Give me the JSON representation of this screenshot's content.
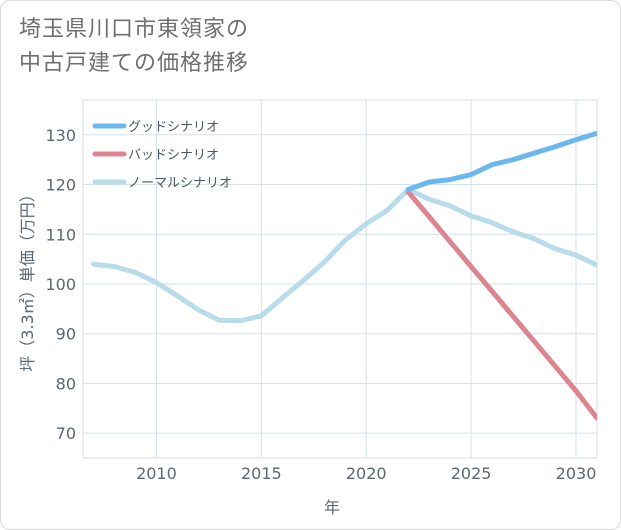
{
  "title_lines": [
    "埼玉県川口市東領家の",
    "中古戸建ての価格推移"
  ],
  "chart_data": {
    "type": "line",
    "xlabel": "年",
    "ylabel": "坪（3.3㎡）単価（万円）",
    "xlim": [
      2006.5,
      2031
    ],
    "ylim": [
      65,
      137
    ],
    "x_ticks": [
      2010,
      2015,
      2020,
      2025,
      2030
    ],
    "y_ticks": [
      70,
      80,
      90,
      100,
      110,
      120,
      130
    ],
    "grid": true,
    "legend_position": "top-left",
    "series": [
      {
        "name": "グッドシナリオ",
        "color": "#6cb8ec",
        "points": [
          [
            2022,
            119
          ],
          [
            2023,
            120.5
          ],
          [
            2024,
            121
          ],
          [
            2025,
            122
          ],
          [
            2026,
            124
          ],
          [
            2027,
            125
          ],
          [
            2028,
            126.3
          ],
          [
            2029,
            127.6
          ],
          [
            2030,
            129
          ],
          [
            2031,
            130.3
          ]
        ]
      },
      {
        "name": "バッドシナリオ",
        "color": "#dc8590",
        "points": [
          [
            2022,
            118.5
          ],
          [
            2023,
            113.5
          ],
          [
            2024,
            108.5
          ],
          [
            2025,
            103.5
          ],
          [
            2026,
            98.5
          ],
          [
            2027,
            93.5
          ],
          [
            2028,
            88.5
          ],
          [
            2029,
            83.5
          ],
          [
            2030,
            78.5
          ],
          [
            2031,
            73
          ]
        ]
      },
      {
        "name": "ノーマルシナリオ",
        "color": "#b8dcea",
        "points": [
          [
            2007,
            104
          ],
          [
            2008,
            103.5
          ],
          [
            2009,
            102.3
          ],
          [
            2010,
            100.3
          ],
          [
            2011,
            97.6
          ],
          [
            2012,
            94.8
          ],
          [
            2013,
            92.7
          ],
          [
            2014,
            92.6
          ],
          [
            2015,
            93.6
          ],
          [
            2016,
            97.2
          ],
          [
            2017,
            100.7
          ],
          [
            2018,
            104.4
          ],
          [
            2019,
            108.8
          ],
          [
            2020,
            112.1
          ],
          [
            2021,
            114.8
          ],
          [
            2022,
            119
          ],
          [
            2023,
            117
          ],
          [
            2024,
            115.7
          ],
          [
            2025,
            113.7
          ],
          [
            2026,
            112.3
          ],
          [
            2027,
            110.5
          ],
          [
            2028,
            109.1
          ],
          [
            2029,
            107.1
          ],
          [
            2030,
            105.8
          ],
          [
            2031,
            103.8
          ]
        ]
      }
    ]
  }
}
